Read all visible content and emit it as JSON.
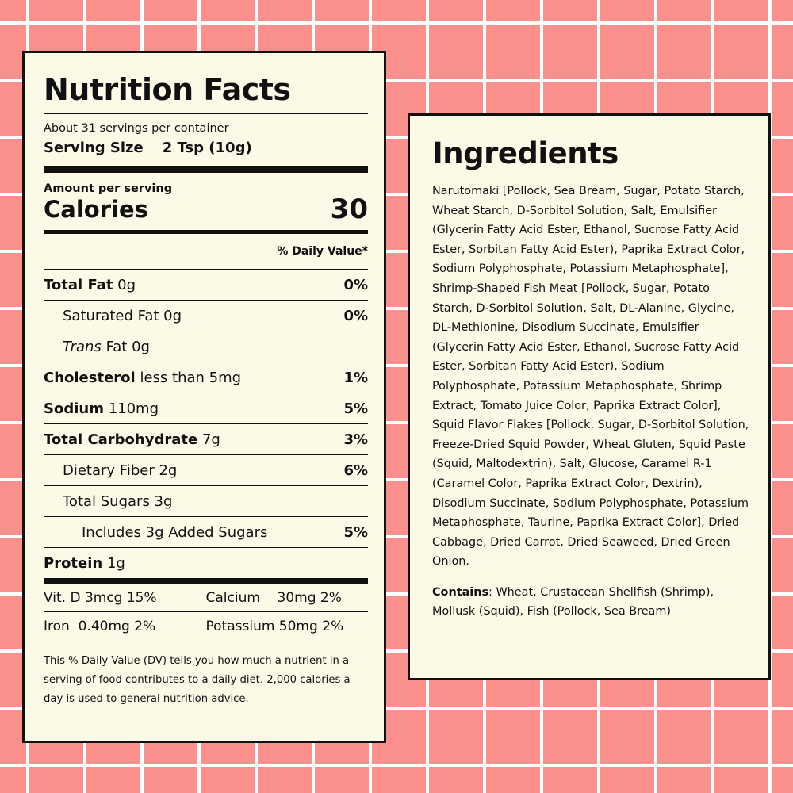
{
  "nutrition": {
    "title": "Nutrition Facts",
    "servings": "About 31 servings per container",
    "serving_size_label": "Serving Size",
    "serving_size": "2 Tsp (10g)",
    "amount_per_serving": "Amount per serving",
    "calories_label": "Calories",
    "calories": "30",
    "daily_value_header": "% Daily Value*",
    "rows": [
      {
        "name": "Total Fat",
        "amount": "0g",
        "dv": "0%",
        "bold": true,
        "indent": 0
      },
      {
        "name": "Saturated Fat",
        "amount": "0g",
        "dv": "0%",
        "bold": false,
        "indent": 1
      },
      {
        "name_italic": "Trans",
        "name": "Fat",
        "amount": "0g",
        "bold": false,
        "indent": 1
      },
      {
        "name": "Cholesterol",
        "amount": "less than 5mg",
        "dv": "1%",
        "bold": true,
        "indent": 0
      },
      {
        "name": "Sodium",
        "amount": "110mg",
        "dv": "5%",
        "bold": true,
        "indent": 0
      },
      {
        "name": "Total Carbohydrate",
        "amount": "7g",
        "dv": "3%",
        "bold": true,
        "indent": 0
      },
      {
        "name": "Dietary Fiber 2g",
        "dv": "6%",
        "bold": false,
        "indent": 1
      },
      {
        "name": "Total Sugars 3g",
        "bold": false,
        "indent": 1
      },
      {
        "name": "Includes 3g Added Sugars",
        "dv": "5%",
        "bold": false,
        "indent": 2
      },
      {
        "name": "Protein",
        "amount": "1g",
        "bold": true,
        "indent": 0
      }
    ],
    "vitamins": [
      [
        "Vit. D 3mcg 15%",
        "Calcium    30mg 2%"
      ],
      [
        "Iron  0.40mg 2%",
        "Potassium 50mg 2%"
      ]
    ],
    "footnote": "This % Daily Value (DV) tells you how much a nutrient in a serving of food contributes to a daily diet. 2,000 calories a day is used to general nutrition advice."
  },
  "ingredients": {
    "title": "Ingredients",
    "text": "Narutomaki [Pollock, Sea Bream, Sugar, Potato Starch, Wheat Starch, D-Sorbitol Solution, Salt, Emulsifier (Glycerin Fatty Acid Ester, Ethanol, Sucrose Fatty Acid Ester, Sorbitan Fatty Acid Ester), Paprika Extract Color, Sodium Polyphosphate, Potassium Metaphosphate], Shrimp-Shaped Fish Meat [Pollock, Sugar, Potato Starch, D-Sorbitol Solution, Salt, DL-Alanine, Glycine, DL-Methionine, Disodium Succinate, Emulsifier (Glycerin Fatty Acid Ester, Ethanol, Sucrose Fatty Acid Ester, Sorbitan Fatty Acid Ester), Sodium Polyphosphate, Potassium Metaphosphate, Shrimp Extract, Tomato Juice Color, Paprika Extract Color], Squid Flavor Flakes [Pollock, Sugar, D-Sorbitol Solution, Freeze-Dried Squid Powder, Wheat Gluten, Squid Paste (Squid, Maltodextrin), Salt, Glucose, Caramel R-1 (Caramel Color, Paprika Extract Color, Dextrin), Disodium Succinate, Sodium Polyphosphate, Potassium Metaphosphate, Taurine, Paprika Extract Color], Dried Cabbage, Dried Carrot, Dried Seaweed, Dried Green Onion.",
    "contains_label": "Contains",
    "contains_text": ": Wheat, Crustacean Shellfish (Shrimp), Mollusk (Squid), Fish (Pollock, Sea Bream)"
  }
}
